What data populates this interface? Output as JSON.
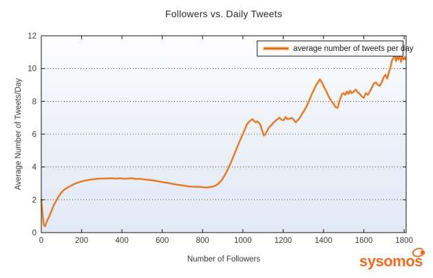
{
  "chart_data": {
    "type": "line",
    "title": "Followers vs. Daily Tweets",
    "xlabel": "Number of Followers",
    "ylabel": "Average Number of Tweets/Day",
    "xlim": [
      0,
      1810
    ],
    "ylim": [
      0,
      12
    ],
    "xticks": [
      0,
      200,
      400,
      600,
      800,
      1000,
      1200,
      1400,
      1600,
      1800
    ],
    "yticks": [
      0,
      2,
      4,
      6,
      8,
      10,
      12
    ],
    "grid": "horizontal dotted black lines at y=2,4,6,8,10",
    "legend_position": "upper right",
    "plot_bg_gradient": [
      "#fdfdfe",
      "#e2e9f6"
    ],
    "line_color": "#E0711E",
    "line_halo_color": "#F4AE74",
    "axis_color": "#111111",
    "tick_text_color": "#3a3a3a",
    "series": [
      {
        "name": "average number of tweets per day",
        "color": "#E0711E",
        "points": [
          [
            0,
            2.05
          ],
          [
            6,
            1.1
          ],
          [
            12,
            0.5
          ],
          [
            18,
            0.38
          ],
          [
            25,
            0.6
          ],
          [
            32,
            0.8
          ],
          [
            40,
            1.0
          ],
          [
            48,
            1.25
          ],
          [
            56,
            1.5
          ],
          [
            64,
            1.72
          ],
          [
            72,
            1.9
          ],
          [
            80,
            2.08
          ],
          [
            90,
            2.28
          ],
          [
            100,
            2.45
          ],
          [
            110,
            2.57
          ],
          [
            120,
            2.67
          ],
          [
            135,
            2.78
          ],
          [
            150,
            2.88
          ],
          [
            165,
            2.97
          ],
          [
            180,
            3.04
          ],
          [
            195,
            3.1
          ],
          [
            210,
            3.15
          ],
          [
            230,
            3.2
          ],
          [
            250,
            3.24
          ],
          [
            270,
            3.27
          ],
          [
            290,
            3.29
          ],
          [
            310,
            3.3
          ],
          [
            330,
            3.3
          ],
          [
            350,
            3.31
          ],
          [
            370,
            3.29
          ],
          [
            390,
            3.31
          ],
          [
            410,
            3.28
          ],
          [
            430,
            3.3
          ],
          [
            450,
            3.31
          ],
          [
            470,
            3.27
          ],
          [
            490,
            3.28
          ],
          [
            510,
            3.24
          ],
          [
            530,
            3.22
          ],
          [
            550,
            3.19
          ],
          [
            570,
            3.15
          ],
          [
            590,
            3.1
          ],
          [
            610,
            3.06
          ],
          [
            630,
            3.02
          ],
          [
            650,
            2.97
          ],
          [
            670,
            2.93
          ],
          [
            690,
            2.89
          ],
          [
            710,
            2.86
          ],
          [
            730,
            2.82
          ],
          [
            750,
            2.8
          ],
          [
            770,
            2.79
          ],
          [
            790,
            2.78
          ],
          [
            805,
            2.76
          ],
          [
            820,
            2.75
          ],
          [
            835,
            2.77
          ],
          [
            850,
            2.8
          ],
          [
            865,
            2.87
          ],
          [
            880,
            3.0
          ],
          [
            895,
            3.2
          ],
          [
            910,
            3.5
          ],
          [
            925,
            3.85
          ],
          [
            940,
            4.25
          ],
          [
            955,
            4.7
          ],
          [
            970,
            5.15
          ],
          [
            985,
            5.6
          ],
          [
            1000,
            6.0
          ],
          [
            1010,
            6.3
          ],
          [
            1020,
            6.6
          ],
          [
            1030,
            6.75
          ],
          [
            1040,
            6.85
          ],
          [
            1048,
            6.92
          ],
          [
            1056,
            6.8
          ],
          [
            1064,
            6.72
          ],
          [
            1072,
            6.78
          ],
          [
            1080,
            6.68
          ],
          [
            1088,
            6.55
          ],
          [
            1096,
            6.2
          ],
          [
            1104,
            5.92
          ],
          [
            1112,
            6.0
          ],
          [
            1122,
            6.25
          ],
          [
            1132,
            6.45
          ],
          [
            1142,
            6.55
          ],
          [
            1152,
            6.7
          ],
          [
            1162,
            6.82
          ],
          [
            1172,
            6.92
          ],
          [
            1182,
            7.0
          ],
          [
            1192,
            6.88
          ],
          [
            1202,
            6.85
          ],
          [
            1212,
            7.05
          ],
          [
            1222,
            6.9
          ],
          [
            1232,
            6.95
          ],
          [
            1242,
            7.0
          ],
          [
            1252,
            6.88
          ],
          [
            1262,
            6.72
          ],
          [
            1272,
            6.85
          ],
          [
            1282,
            7.0
          ],
          [
            1292,
            7.2
          ],
          [
            1302,
            7.4
          ],
          [
            1312,
            7.6
          ],
          [
            1322,
            7.85
          ],
          [
            1332,
            8.15
          ],
          [
            1342,
            8.45
          ],
          [
            1352,
            8.7
          ],
          [
            1362,
            8.95
          ],
          [
            1372,
            9.15
          ],
          [
            1382,
            9.35
          ],
          [
            1392,
            9.15
          ],
          [
            1400,
            8.95
          ],
          [
            1410,
            8.7
          ],
          [
            1420,
            8.45
          ],
          [
            1430,
            8.2
          ],
          [
            1440,
            8.0
          ],
          [
            1450,
            7.85
          ],
          [
            1460,
            7.65
          ],
          [
            1470,
            7.6
          ],
          [
            1480,
            8.05
          ],
          [
            1492,
            8.45
          ],
          [
            1500,
            8.5
          ],
          [
            1508,
            8.4
          ],
          [
            1516,
            8.6
          ],
          [
            1524,
            8.45
          ],
          [
            1532,
            8.65
          ],
          [
            1540,
            8.5
          ],
          [
            1550,
            8.6
          ],
          [
            1560,
            8.72
          ],
          [
            1570,
            8.55
          ],
          [
            1580,
            8.45
          ],
          [
            1590,
            8.3
          ],
          [
            1600,
            8.22
          ],
          [
            1610,
            8.5
          ],
          [
            1620,
            8.4
          ],
          [
            1630,
            8.6
          ],
          [
            1640,
            8.85
          ],
          [
            1650,
            9.1
          ],
          [
            1660,
            9.15
          ],
          [
            1670,
            9.0
          ],
          [
            1680,
            8.95
          ],
          [
            1690,
            9.2
          ],
          [
            1700,
            9.5
          ],
          [
            1708,
            9.62
          ],
          [
            1716,
            9.4
          ],
          [
            1724,
            9.75
          ],
          [
            1732,
            10.1
          ],
          [
            1740,
            10.5
          ],
          [
            1748,
            10.7
          ],
          [
            1754,
            10.78
          ],
          [
            1760,
            10.45
          ],
          [
            1766,
            10.8
          ],
          [
            1772,
            10.55
          ],
          [
            1778,
            10.85
          ],
          [
            1784,
            10.4
          ],
          [
            1790,
            10.72
          ],
          [
            1796,
            10.55
          ],
          [
            1802,
            10.7
          ],
          [
            1808,
            10.52
          ]
        ]
      }
    ]
  },
  "branding": {
    "logo_text": "sysomos",
    "logo_color": "#F26A21"
  }
}
